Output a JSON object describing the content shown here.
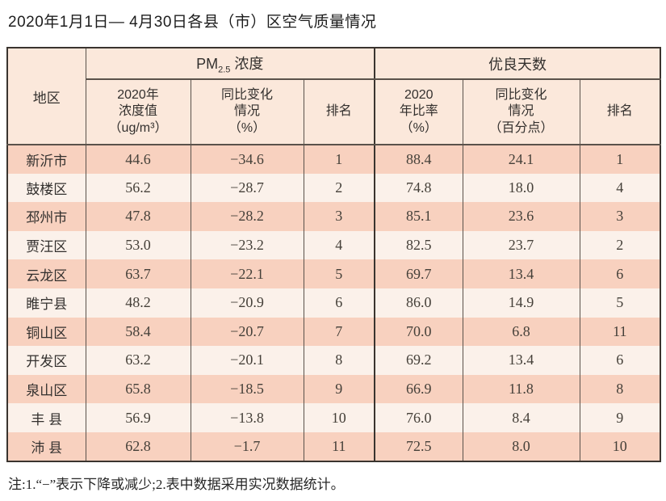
{
  "title": "2020年1月1日— 4月30日各县（市）区空气质量情况",
  "note": "注:1.“−”表示下降或减少;2.表中数据采用实况数据统计。",
  "colors": {
    "row_dark": "#f8d1bf",
    "row_light": "#fbf1ea",
    "header_bg": "#fbe8db",
    "border_heavy": "#3a342f",
    "border_thin": "#5a524b"
  },
  "table": {
    "region_header": "地区",
    "pm_group": {
      "prefix": "PM",
      "sub": "2.5",
      "suffix": " 浓度"
    },
    "good_days_group": "优良天数",
    "subheaders": [
      "2020年\n浓度值\n（ug/m³）",
      "同比变化\n情况\n（%）",
      "排名",
      "2020\n年比率\n（%）",
      "同比变化\n情况\n（百分点）",
      "排名"
    ],
    "row_keys": [
      "region",
      "pm_value",
      "pm_change",
      "pm_rank",
      "days_rate",
      "days_change",
      "days_rank"
    ],
    "rows": [
      {
        "region": "新沂市",
        "pm_value": "44.6",
        "pm_change": "−34.6",
        "pm_rank": "1",
        "days_rate": "88.4",
        "days_change": "24.1",
        "days_rank": "1"
      },
      {
        "region": "鼓楼区",
        "pm_value": "56.2",
        "pm_change": "−28.7",
        "pm_rank": "2",
        "days_rate": "74.8",
        "days_change": "18.0",
        "days_rank": "4"
      },
      {
        "region": "邳州市",
        "pm_value": "47.8",
        "pm_change": "−28.2",
        "pm_rank": "3",
        "days_rate": "85.1",
        "days_change": "23.6",
        "days_rank": "3"
      },
      {
        "region": "贾汪区",
        "pm_value": "53.0",
        "pm_change": "−23.2",
        "pm_rank": "4",
        "days_rate": "82.5",
        "days_change": "23.7",
        "days_rank": "2"
      },
      {
        "region": "云龙区",
        "pm_value": "63.7",
        "pm_change": "−22.1",
        "pm_rank": "5",
        "days_rate": "69.7",
        "days_change": "13.4",
        "days_rank": "6"
      },
      {
        "region": "睢宁县",
        "pm_value": "48.2",
        "pm_change": "−20.9",
        "pm_rank": "6",
        "days_rate": "86.0",
        "days_change": "14.9",
        "days_rank": "5"
      },
      {
        "region": "铜山区",
        "pm_value": "58.4",
        "pm_change": "−20.7",
        "pm_rank": "7",
        "days_rate": "70.0",
        "days_change": "6.8",
        "days_rank": "11"
      },
      {
        "region": "开发区",
        "pm_value": "63.2",
        "pm_change": "−20.1",
        "pm_rank": "8",
        "days_rate": "69.2",
        "days_change": "13.4",
        "days_rank": "6"
      },
      {
        "region": "泉山区",
        "pm_value": "65.8",
        "pm_change": "−18.5",
        "pm_rank": "9",
        "days_rate": "66.9",
        "days_change": "11.8",
        "days_rank": "8"
      },
      {
        "region": "丰 县",
        "pm_value": "56.9",
        "pm_change": "−13.8",
        "pm_rank": "10",
        "days_rate": "76.0",
        "days_change": "8.4",
        "days_rank": "9"
      },
      {
        "region": "沛 县",
        "pm_value": "62.8",
        "pm_change": "−1.7",
        "pm_rank": "11",
        "days_rate": "72.5",
        "days_change": "8.0",
        "days_rank": "10"
      }
    ]
  }
}
